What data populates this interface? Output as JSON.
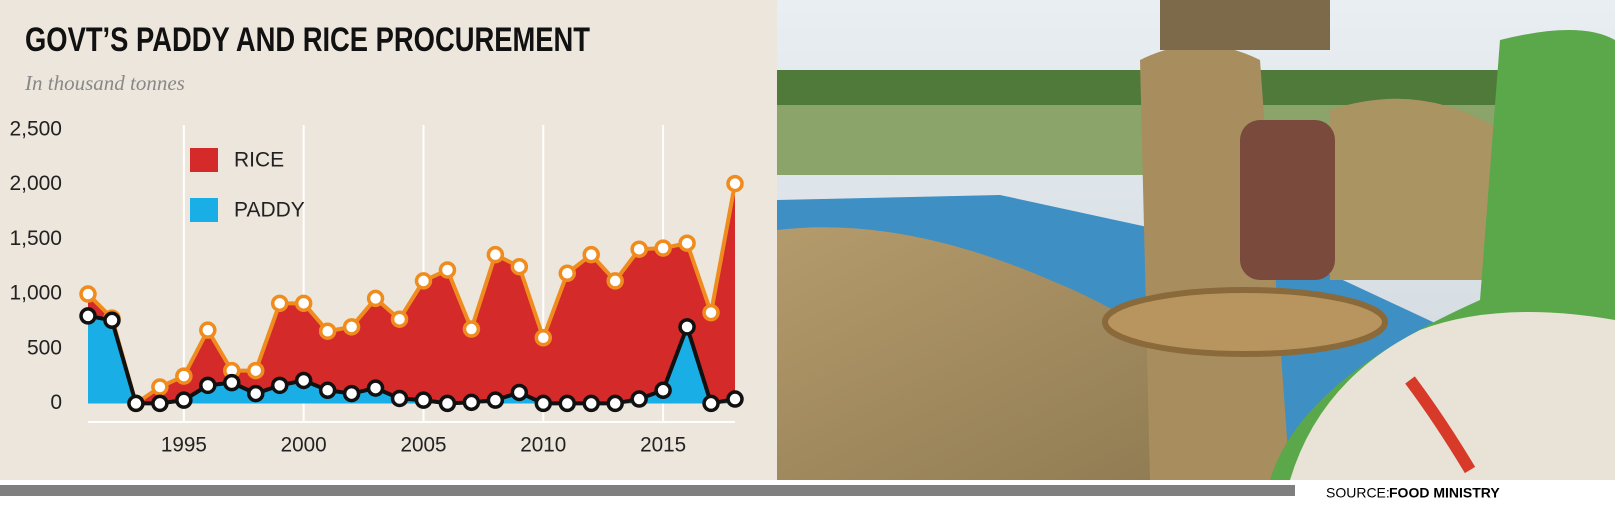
{
  "chart_data": {
    "type": "area",
    "title": "GOVT’S PADDY AND RICE PROCUREMENT",
    "subtitle": "In thousand tonnes",
    "x": [
      1991,
      1992,
      1993,
      1994,
      1995,
      1996,
      1997,
      1998,
      1999,
      2000,
      2001,
      2002,
      2003,
      2004,
      2005,
      2006,
      2007,
      2008,
      2009,
      2010,
      2011,
      2012,
      2013,
      2014,
      2015,
      2016,
      2017,
      2018
    ],
    "series": [
      {
        "name": "RICE",
        "color": "#d42a2a",
        "line_color": "#f08c1e",
        "values": [
          1000,
          780,
          0,
          150,
          250,
          670,
          300,
          300,
          915,
          915,
          660,
          700,
          960,
          770,
          1120,
          1220,
          680,
          1360,
          1250,
          600,
          1190,
          1360,
          1120,
          1410,
          1420,
          1465,
          830,
          2010
        ]
      },
      {
        "name": "PADDY",
        "color": "#1aaee6",
        "line_color": "#111111",
        "values": [
          800,
          760,
          0,
          0,
          30,
          165,
          190,
          90,
          165,
          210,
          120,
          90,
          140,
          45,
          30,
          0,
          10,
          30,
          100,
          0,
          0,
          0,
          0,
          40,
          120,
          700,
          0,
          40
        ]
      }
    ],
    "xlim": [
      1991,
      2018
    ],
    "xticks": [
      1995,
      2000,
      2005,
      2010,
      2015
    ],
    "ylim": [
      -170,
      2500
    ],
    "yticks": [
      0,
      500,
      {
        "value": 1000,
        "label": "1,000"
      },
      {
        "value": 1500,
        "label": "1,500"
      },
      {
        "value": 2000,
        "label": "2,000"
      },
      {
        "value": 2500,
        "label": "2,500"
      }
    ],
    "grid": true,
    "source_label": "SOURCE:",
    "source": "FOOD MINISTRY"
  }
}
